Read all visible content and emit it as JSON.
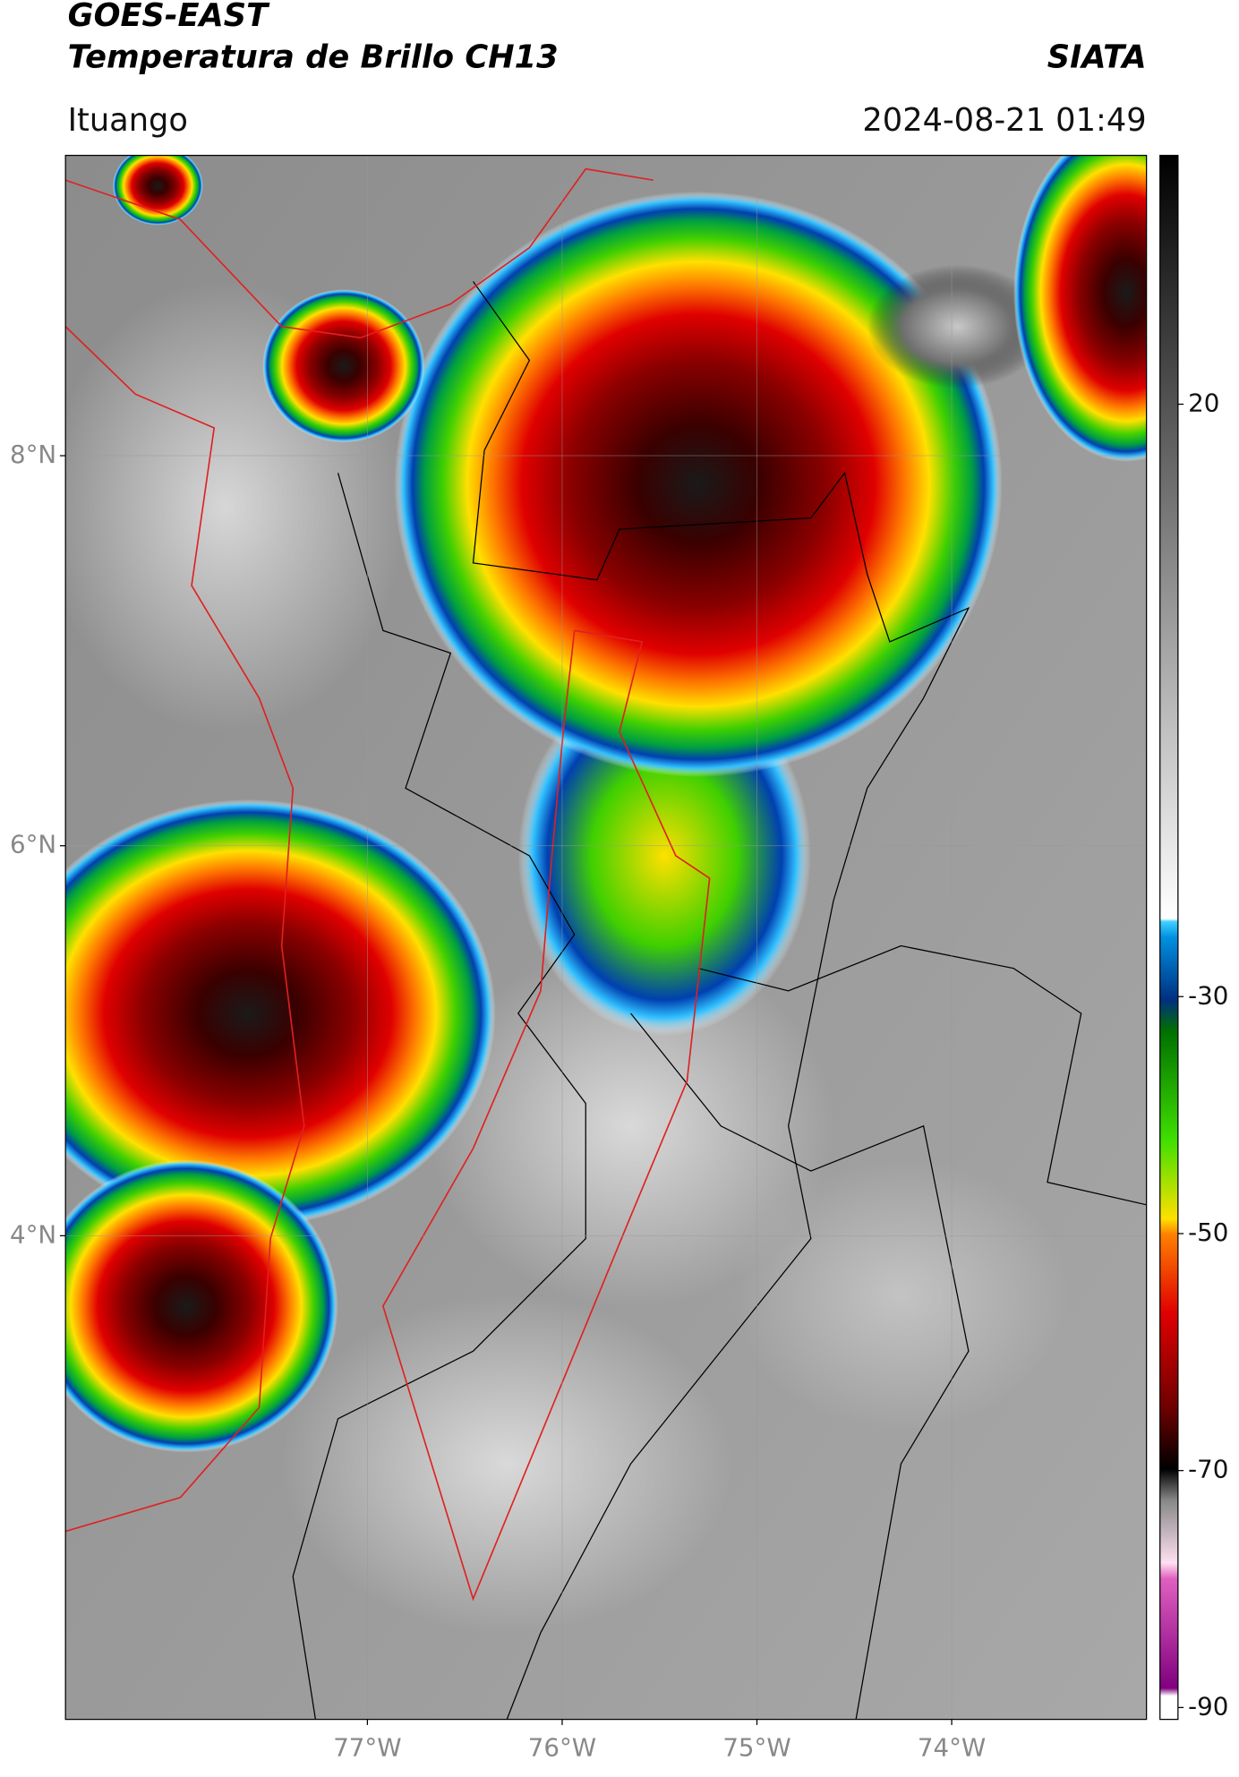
{
  "header": {
    "title_line1": "GOES-EAST",
    "title_line2": "Temperatura de Brillo CH13",
    "org": "SIATA",
    "location": "Ituango",
    "datetime": "2024-08-21 01:49"
  },
  "map": {
    "lat_range": [
      1.52,
      9.54
    ],
    "lon_range": [
      -78.55,
      -73.0
    ],
    "lat_ticks": [
      {
        "value": 8,
        "label": "8°N"
      },
      {
        "value": 6,
        "label": "6°N"
      },
      {
        "value": 4,
        "label": "4°N"
      }
    ],
    "lon_ticks": [
      {
        "value": -77,
        "label": "77°W"
      },
      {
        "value": -76,
        "label": "76°W"
      },
      {
        "value": -75,
        "label": "75°W"
      },
      {
        "value": -74,
        "label": "74°W"
      }
    ]
  },
  "colorbar": {
    "range": [
      -91,
      41
    ],
    "ticks": [
      20,
      -30,
      -50,
      -70,
      -90
    ]
  }
}
